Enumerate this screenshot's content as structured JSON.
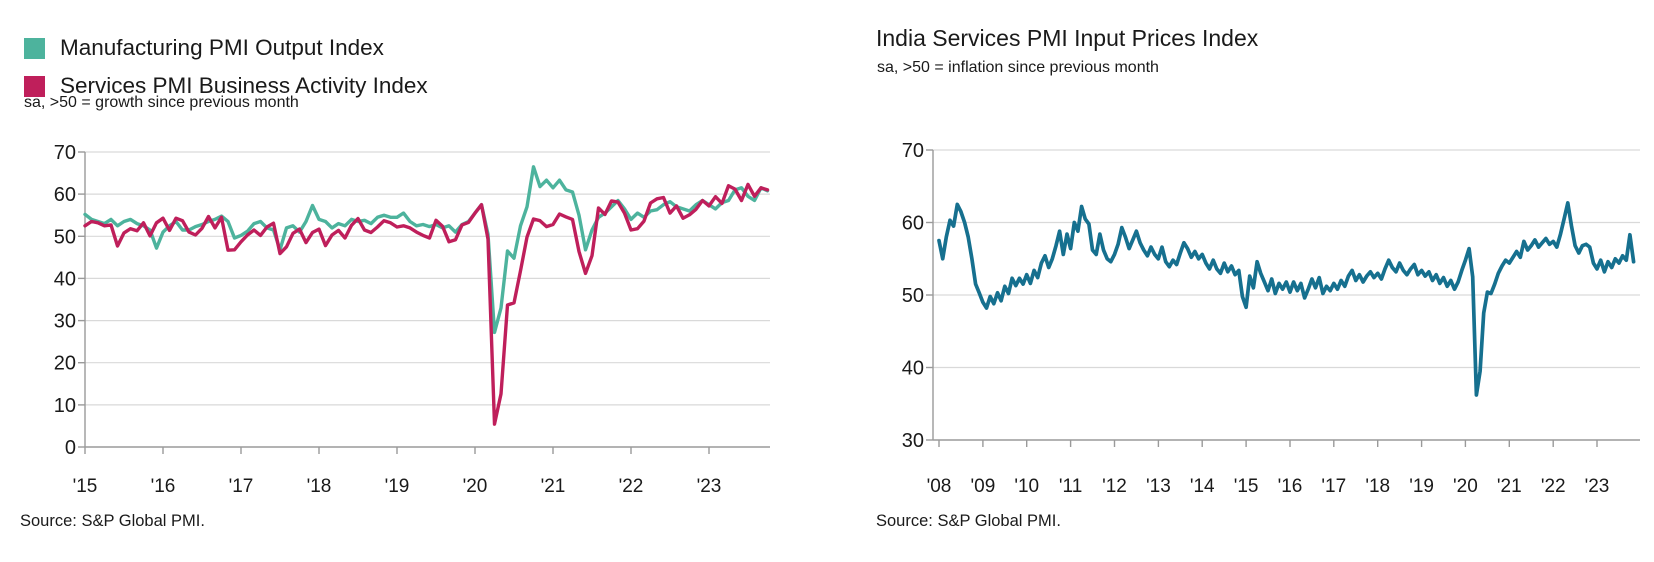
{
  "colors": {
    "background": "#ffffff",
    "grid": "#d9d9d9",
    "axis": "#9a9a9a",
    "text": "#1a1a1a",
    "manufacturing_teal": "#4DB39D",
    "services_crimson": "#BF1F5B",
    "input_prices_blue": "#16708F"
  },
  "chart_data": [
    {
      "type": "line",
      "title": "",
      "subtitle": "sa, >50 = growth since previous month",
      "source": "Source: S&P Global PMI.",
      "x_start": "2015-01",
      "x_interval": "monthly",
      "x_tick_labels": [
        "'15",
        "'16",
        "'17",
        "'18",
        "'19",
        "'20",
        "'21",
        "'22",
        "'23"
      ],
      "ylim": [
        0,
        70
      ],
      "yticks": [
        0,
        10,
        20,
        30,
        40,
        50,
        60,
        70
      ],
      "grid": "horizontal",
      "legend_position": "top-left",
      "series": [
        {
          "name": "Manufacturing PMI Output Index",
          "color": "#4DB39D",
          "values": [
            55.2,
            54.0,
            53.5,
            53.0,
            54.0,
            52.5,
            53.5,
            54.0,
            53.0,
            52.5,
            51.5,
            47.2,
            51.0,
            52.5,
            53.5,
            51.5,
            51.5,
            52.3,
            52.8,
            53.5,
            54.0,
            54.8,
            53.5,
            49.6,
            50.2,
            51.2,
            53.0,
            53.5,
            52.0,
            51.5,
            46.8,
            52.0,
            52.5,
            51.0,
            53.5,
            57.3,
            54.0,
            53.5,
            52.0,
            53.0,
            52.5,
            54.0,
            53.5,
            53.8,
            53.0,
            54.5,
            55.0,
            54.5,
            54.5,
            55.5,
            53.5,
            52.5,
            52.8,
            52.3,
            52.8,
            52.0,
            52.5,
            51.0,
            52.8,
            53.5,
            55.5,
            57.5,
            50.5,
            27.2,
            33.0,
            46.5,
            44.8,
            52.5,
            57.0,
            66.5,
            61.8,
            63.3,
            61.5,
            63.3,
            61.0,
            60.5,
            55.0,
            46.8,
            51.5,
            54.5,
            55.5,
            57.0,
            58.5,
            56.5,
            54.0,
            55.5,
            54.5,
            56.0,
            56.3,
            57.5,
            58.2,
            57.0,
            56.5,
            56.0,
            57.5,
            58.5,
            57.5,
            56.5,
            58.0,
            58.5,
            61.0,
            61.5,
            59.5,
            58.5,
            61.5,
            60.8
          ]
        },
        {
          "name": "Services PMI Business Activity Index",
          "color": "#BF1F5B",
          "values": [
            52.5,
            53.5,
            53.2,
            52.5,
            52.7,
            47.7,
            50.8,
            51.8,
            51.3,
            53.2,
            50.1,
            53.2,
            54.3,
            51.4,
            54.3,
            53.7,
            51.0,
            50.3,
            51.9,
            54.7,
            52.0,
            54.5,
            46.7,
            46.8,
            48.7,
            50.3,
            51.5,
            50.2,
            52.2,
            53.1,
            45.9,
            47.5,
            50.7,
            51.7,
            48.5,
            50.9,
            51.7,
            47.8,
            50.3,
            51.4,
            49.6,
            52.6,
            54.2,
            51.5,
            50.9,
            52.2,
            53.7,
            53.2,
            52.2,
            52.5,
            52.0,
            51.0,
            50.2,
            49.6,
            53.8,
            52.4,
            48.7,
            49.2,
            52.7,
            53.3,
            55.5,
            57.5,
            49.3,
            5.4,
            12.6,
            33.7,
            34.2,
            41.8,
            49.8,
            54.1,
            53.7,
            52.3,
            52.8,
            55.3,
            54.6,
            54.0,
            46.4,
            41.2,
            45.4,
            56.7,
            55.2,
            58.4,
            58.1,
            55.5,
            51.5,
            51.8,
            53.6,
            57.9,
            58.9,
            59.2,
            55.5,
            57.2,
            54.3,
            55.1,
            56.4,
            58.5,
            57.2,
            59.4,
            57.8,
            62.0,
            61.2,
            58.5,
            62.3,
            59.5,
            61.5,
            61.0
          ]
        }
      ]
    },
    {
      "type": "line",
      "title": "India Services PMI Input Prices Index",
      "subtitle": "sa, >50 = inflation since previous month",
      "source": "Source: S&P Global PMI.",
      "x_start": "2008-01",
      "x_interval": "monthly",
      "x_tick_labels": [
        "'08",
        "'09",
        "'10",
        "'11",
        "'12",
        "'13",
        "'14",
        "'15",
        "'16",
        "'17",
        "'18",
        "'19",
        "'20",
        "'21",
        "'22",
        "'23"
      ],
      "ylim": [
        30,
        70
      ],
      "yticks": [
        30,
        40,
        50,
        60,
        70
      ],
      "grid": "horizontal",
      "legend_position": "none",
      "series": [
        {
          "name": "India Services PMI Input Prices Index",
          "color": "#16708F",
          "values": [
            57.5,
            55.0,
            58.0,
            60.3,
            59.5,
            62.5,
            61.5,
            60.0,
            58.0,
            55.0,
            51.5,
            50.3,
            49.0,
            48.2,
            49.8,
            48.8,
            50.3,
            49.2,
            51.2,
            50.2,
            52.3,
            51.3,
            52.3,
            51.5,
            52.8,
            51.6,
            53.4,
            52.4,
            54.4,
            55.4,
            53.8,
            55.0,
            56.8,
            58.8,
            55.6,
            58.4,
            56.4,
            60.0,
            58.8,
            62.2,
            60.5,
            59.8,
            56.2,
            55.6,
            58.4,
            56.2,
            55.0,
            54.6,
            55.6,
            57.0,
            59.3,
            58.0,
            56.4,
            57.6,
            58.8,
            57.2,
            56.2,
            55.4,
            56.6,
            55.6,
            55.0,
            56.6,
            54.6,
            53.9,
            54.8,
            54.2,
            55.8,
            57.2,
            56.4,
            55.2,
            56.0,
            55.0,
            55.6,
            54.4,
            53.6,
            54.8,
            53.6,
            53.0,
            54.4,
            53.2,
            54.0,
            52.8,
            53.4,
            49.8,
            48.3,
            52.6,
            51.0,
            54.6,
            53.0,
            51.8,
            50.6,
            52.2,
            50.2,
            51.6,
            50.8,
            51.8,
            50.4,
            51.8,
            50.6,
            51.6,
            49.6,
            50.8,
            52.2,
            51.0,
            52.4,
            50.2,
            51.2,
            50.6,
            51.6,
            50.8,
            52.0,
            51.2,
            52.6,
            53.4,
            52.0,
            52.8,
            51.8,
            52.6,
            53.2,
            52.4,
            53.0,
            52.2,
            53.6,
            54.8,
            53.8,
            53.2,
            54.4,
            53.4,
            52.8,
            53.6,
            54.2,
            52.8,
            53.4,
            52.6,
            53.2,
            52.0,
            52.8,
            51.6,
            52.4,
            51.2,
            52.0,
            50.8,
            51.8,
            53.4,
            54.8,
            56.4,
            52.5,
            36.2,
            39.5,
            47.5,
            50.4,
            50.2,
            51.5,
            53.0,
            54.0,
            54.8,
            54.4,
            55.2,
            56.0,
            55.2,
            57.4,
            56.2,
            56.8,
            57.6,
            56.6,
            57.2,
            57.8,
            57.0,
            57.4,
            56.6,
            58.4,
            60.5,
            62.7,
            59.5,
            56.8,
            55.8,
            56.8,
            57.0,
            56.6,
            54.4,
            53.6,
            54.8,
            53.2,
            54.6,
            53.8,
            55.0,
            54.4,
            55.4,
            54.8,
            58.3,
            54.6
          ]
        }
      ]
    }
  ]
}
